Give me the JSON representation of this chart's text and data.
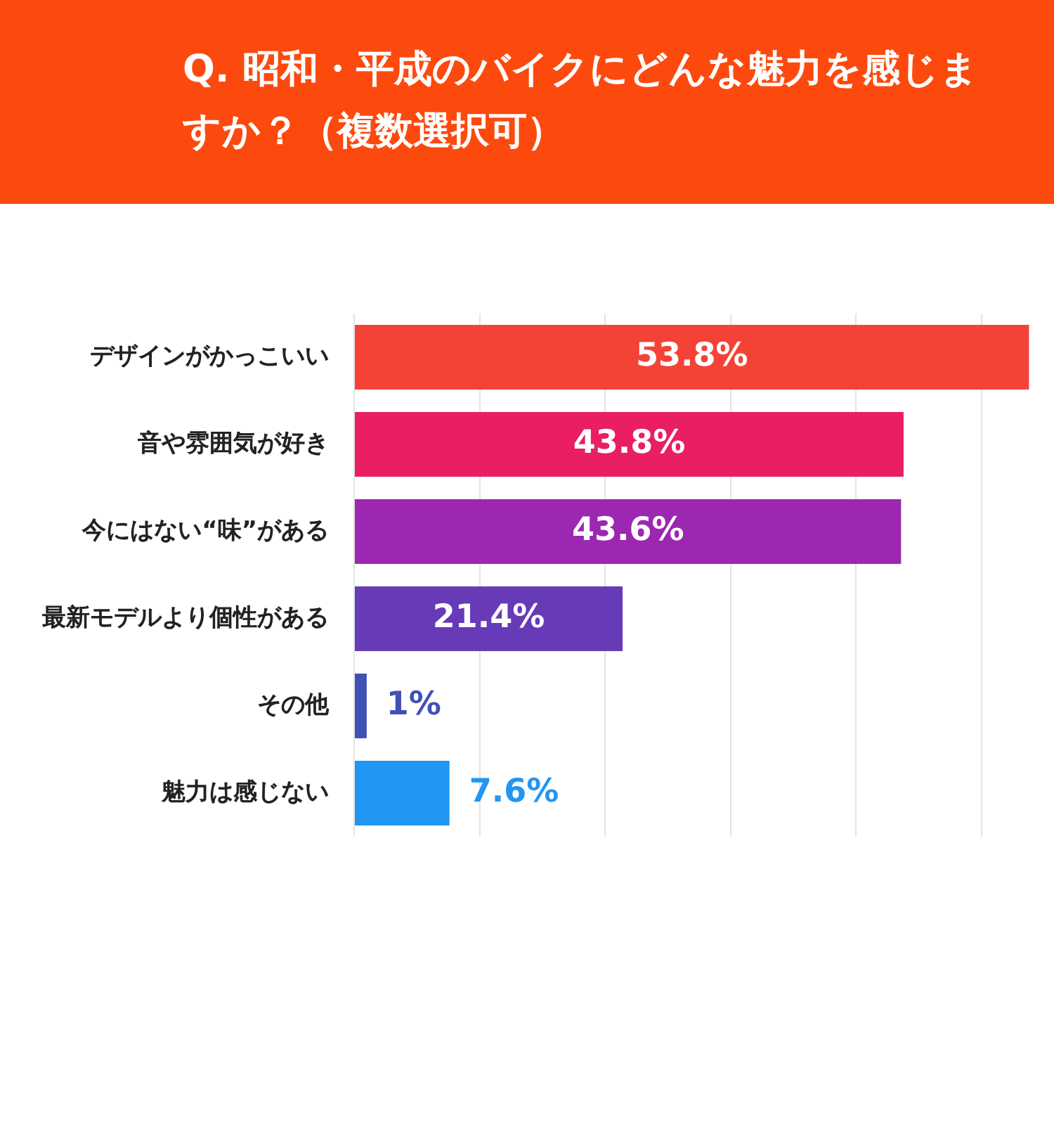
{
  "chart_data": {
    "type": "bar",
    "orientation": "horizontal",
    "title": "Q. 昭和・平成のバイクにどんな魅力を感じますか？（複数選択可）",
    "categories": [
      "デザインがかっこいい",
      "音や雰囲気が好き",
      "今にはない“味”がある",
      "最新モデルより個性がある",
      "その他",
      "魅力は感じない"
    ],
    "values": [
      53.8,
      43.8,
      43.6,
      21.4,
      1,
      7.6
    ],
    "value_labels": [
      "53.8%",
      "43.8%",
      "43.6%",
      "21.4%",
      "1%",
      "7.6%"
    ],
    "colors": [
      "#f44336",
      "#e91e63",
      "#9c27b0",
      "#673ab7",
      "#3f51b5",
      "#2196f3"
    ],
    "xlim": [
      0,
      54
    ],
    "xticks": [
      {
        "value": 0,
        "label": null
      },
      {
        "value": 10,
        "label": null
      },
      {
        "value": 20,
        "label": null
      },
      {
        "value": 30,
        "label": null
      },
      {
        "value": 40,
        "label": null
      },
      {
        "value": 50,
        "label": null
      }
    ],
    "grid": "x",
    "tick_labels": "y",
    "legend": false
  }
}
